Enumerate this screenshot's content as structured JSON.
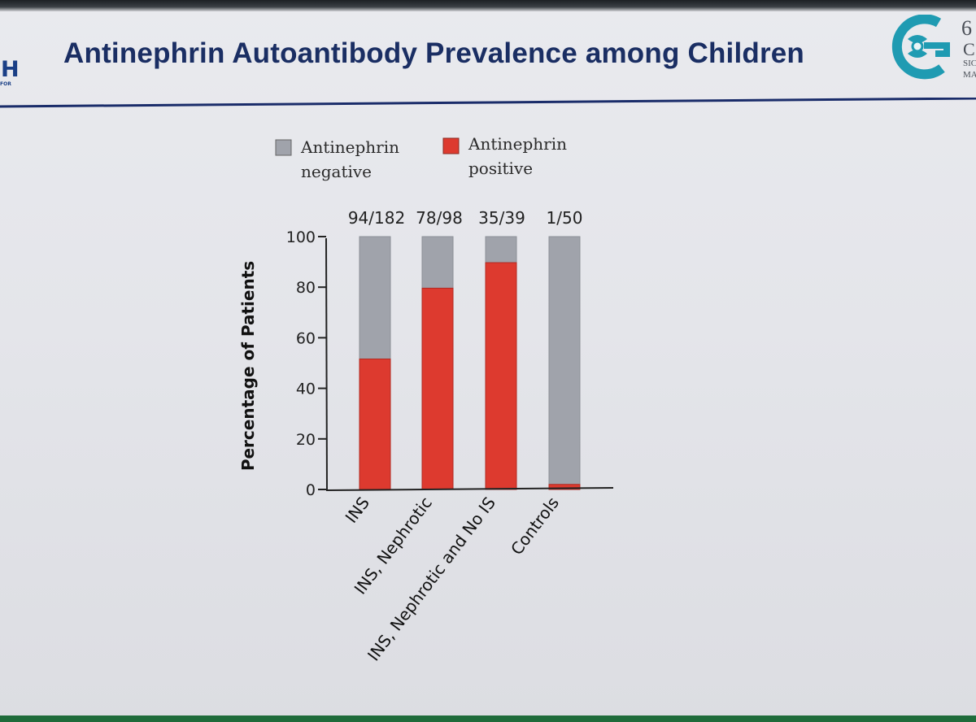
{
  "slide": {
    "title": "Antinephrin Autoantibody Prevalence among Children",
    "logo_left_text": "H",
    "logo_left_subtext": "FOR",
    "logo_right_fragments": [
      "6",
      "C",
      "SIC",
      "MA"
    ]
  },
  "colors": {
    "negative": "#a0a3ab",
    "positive": "#dd3a2f",
    "title": "#1a2e63",
    "rule": "#1a2c6a",
    "logo_teal": "#1f9bb2"
  },
  "icons": {
    "logo_right": "society-emblem-icon"
  },
  "chart_data": {
    "type": "bar",
    "stacked": true,
    "title": "",
    "xlabel": "",
    "ylabel": "Percentage of Patients",
    "ylim": [
      0,
      100
    ],
    "yticks": [
      0,
      20,
      40,
      60,
      80,
      100
    ],
    "categories": [
      "INS",
      "INS, Nephrotic",
      "INS, Nephrotic and No IS",
      "Controls"
    ],
    "ratio_labels": [
      "94/182",
      "78/98",
      "35/39",
      "1/50"
    ],
    "series": [
      {
        "name": "Antinephrin positive",
        "legend_lines": [
          "Antinephrin",
          "positive"
        ],
        "values": [
          51.6,
          79.6,
          89.7,
          2.0
        ]
      },
      {
        "name": "Antinephrin negative",
        "legend_lines": [
          "Antinephrin",
          "negative"
        ],
        "values": [
          48.4,
          20.4,
          10.3,
          98.0
        ]
      }
    ],
    "legend_position": "top",
    "grid": false
  }
}
